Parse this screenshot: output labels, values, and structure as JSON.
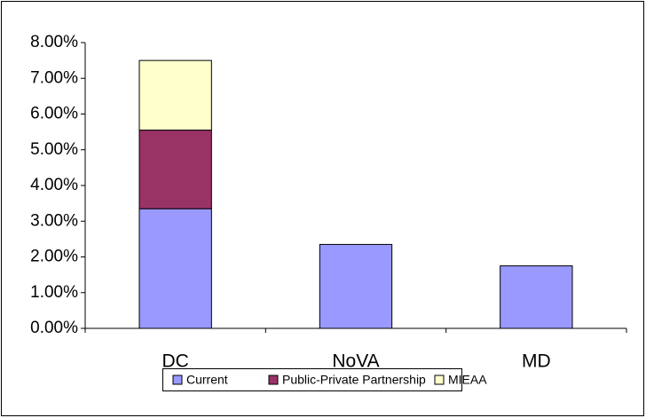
{
  "chart_data": {
    "type": "bar",
    "stacked": true,
    "categories": [
      "DC",
      "NoVA",
      "MD"
    ],
    "series": [
      {
        "name": "Current",
        "color": "#9999ff",
        "values": [
          3.35,
          2.35,
          1.75
        ]
      },
      {
        "name": "Public-Private Partnership",
        "color": "#993366",
        "values": [
          2.2,
          null,
          null
        ]
      },
      {
        "name": "MIEAA",
        "color": "#ffffcc",
        "values": [
          1.95,
          null,
          null
        ]
      }
    ],
    "ylim": [
      0,
      8
    ],
    "yticks": [
      {
        "value": 0,
        "label": "0.00%"
      },
      {
        "value": 1,
        "label": "1.00%"
      },
      {
        "value": 2,
        "label": "2.00%"
      },
      {
        "value": 3,
        "label": "3.00%"
      },
      {
        "value": 4,
        "label": "4.00%"
      },
      {
        "value": 5,
        "label": "5.00%"
      },
      {
        "value": 6,
        "label": "6.00%"
      },
      {
        "value": 7,
        "label": "7.00%"
      },
      {
        "value": 8,
        "label": "8.00%"
      }
    ],
    "grid": false,
    "legend": "bottom"
  }
}
